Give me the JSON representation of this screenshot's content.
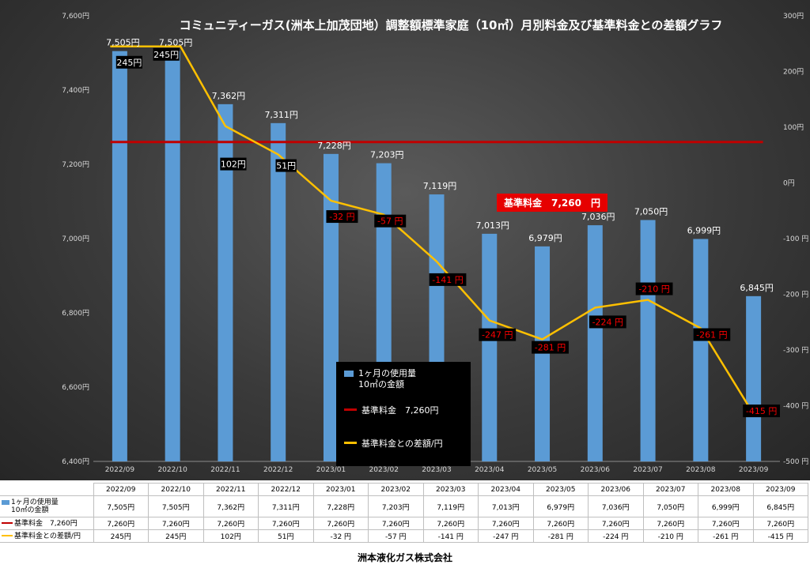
{
  "chart_data": {
    "type": "bar+line",
    "title": "コミュニティーガス(洲本上加茂団地）調整額標準家庭（10㎥）月別料金及び基準料金との差額グラフ",
    "categories": [
      "2022/09",
      "2022/10",
      "2022/11",
      "2022/12",
      "2023/01",
      "2023/02",
      "2023/03",
      "2023/04",
      "2023/05",
      "2023/06",
      "2023/07",
      "2023/08",
      "2023/09"
    ],
    "series": [
      {
        "name": "1ヶ月の使用量　10㎥の金額",
        "type": "bar",
        "axis": "left",
        "color": "#5b9bd5",
        "values": [
          7505,
          7505,
          7362,
          7311,
          7228,
          7203,
          7119,
          7013,
          6979,
          7036,
          7050,
          6999,
          6845
        ],
        "labels": [
          "7,505円",
          "7,505円",
          "7,362円",
          "7,311円",
          "7,228円",
          "7,203円",
          "7,119円",
          "7,013円",
          "6,979円",
          "7,036円",
          "7,050円",
          "6,999円",
          "6,845円"
        ]
      },
      {
        "name": "基準料金　7,260円",
        "type": "line",
        "axis": "left",
        "color": "#c00000",
        "values": [
          7260,
          7260,
          7260,
          7260,
          7260,
          7260,
          7260,
          7260,
          7260,
          7260,
          7260,
          7260,
          7260
        ],
        "labels": [
          "7,260円",
          "7,260円",
          "7,260円",
          "7,260円",
          "7,260円",
          "7,260円",
          "7,260円",
          "7,260円",
          "7,260円",
          "7,260円",
          "7,260円",
          "7,260円",
          "7,260円"
        ]
      },
      {
        "name": "基準料金との差額/円",
        "type": "line",
        "axis": "right",
        "color": "#ffc000",
        "values": [
          245,
          245,
          102,
          51,
          -32,
          -57,
          -141,
          -247,
          -281,
          -224,
          -210,
          -261,
          -415
        ],
        "labels": [
          "245円",
          "245円",
          "102円",
          "51円",
          "-32 円",
          "-57 円",
          "-141 円",
          "-247 円",
          "-281 円",
          "-224 円",
          "-210 円",
          "-261 円",
          "-415 円"
        ]
      }
    ],
    "y_left": {
      "min": 6400,
      "max": 7600,
      "step": 200,
      "ticks": [
        "6,400円",
        "6,600円",
        "6,800円",
        "7,000円",
        "7,200円",
        "7,400円",
        "7,600円"
      ]
    },
    "y_right": {
      "min": -500,
      "max": 300,
      "step": 100,
      "ticks": [
        "-500 円",
        "-400 円",
        "-300 円",
        "-200 円",
        "-100 円",
        "0円",
        "100円",
        "200円",
        "300円"
      ]
    },
    "annotation": "基準料金　7,260　円",
    "legend_position": "bottom-center",
    "grid": false,
    "colors": {
      "bar": "#5b9bd5",
      "base_line": "#c00000",
      "diff_line": "#ffc000",
      "negative_label": "#ff0000"
    }
  },
  "legend": {
    "items": [
      {
        "line1": "1ヶ月の使用量",
        "line2": "10㎥の金額"
      },
      {
        "line1": "基準料金　7,260円"
      },
      {
        "line1": "基準料金との差額/円"
      }
    ]
  },
  "table": {
    "rows": [
      {
        "label1": "1ヶ月の使用量",
        "label2": "10㎥の金額"
      },
      {
        "label1": "基準料金　7,260円"
      },
      {
        "label1": "基準料金との差額/円"
      }
    ]
  },
  "footer": "洲本液化ガス株式会社"
}
